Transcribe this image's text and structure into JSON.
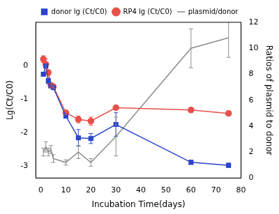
{
  "chart_data": {
    "type": "line",
    "x_label": "Incubation Time(days)",
    "y_label": "Lg(Ct/C0)",
    "y2_label": "Ratios of plasmid to donor",
    "x": [
      1,
      2,
      3,
      4,
      5,
      10,
      15,
      20,
      30,
      60,
      75
    ],
    "xlim": [
      -2,
      80
    ],
    "xticks": [
      0,
      10,
      20,
      30,
      40,
      50,
      60,
      70,
      80
    ],
    "ylim": [
      -3.35,
      1.3
    ],
    "yticks": [
      -3,
      -2,
      -1,
      0
    ],
    "y2lim": [
      0,
      12
    ],
    "y2ticks": [
      0,
      2,
      4,
      6,
      8,
      10,
      12
    ],
    "grid": false,
    "legend": "top",
    "series": [
      {
        "name": "donor lg (Ct/C0)",
        "color": "#2a45c8",
        "marker": "square",
        "line_style": "solid",
        "values": [
          -0.25,
          0.0,
          -0.45,
          -0.6,
          -0.65,
          -1.5,
          -2.15,
          -2.17,
          -1.75,
          -2.88,
          -2.97
        ],
        "errors": [
          0.05,
          0.05,
          0.08,
          0.05,
          0.05,
          0.06,
          0.25,
          0.15,
          0.35,
          0.06,
          0.06
        ]
      },
      {
        "name": "RP4 lg (Ct/C0)",
        "color": "#e8504a",
        "marker": "circle",
        "line_style": "solid",
        "values": [
          0.2,
          0.05,
          -0.2,
          -0.58,
          -0.62,
          -1.4,
          -1.6,
          -1.65,
          -1.25,
          -1.32,
          -1.42
        ],
        "errors": [
          0.1,
          0.15,
          0.08,
          0.05,
          0.05,
          0.06,
          0.1,
          0.12,
          0.03,
          0.05,
          0.05
        ]
      },
      {
        "name": "plasmid/donor",
        "color": "#8c8c8c",
        "marker": "none",
        "line_style": "solid",
        "axis": "y2",
        "values": [
          2.0,
          2.4,
          2.0,
          2.2,
          1.5,
          1.2,
          2.0,
          1.2,
          3.2,
          10.0,
          10.8
        ],
        "errors": [
          0.3,
          0.4,
          0.3,
          0.3,
          0.3,
          0.2,
          0.5,
          0.3,
          1.5,
          1.5,
          1.5
        ]
      }
    ]
  }
}
